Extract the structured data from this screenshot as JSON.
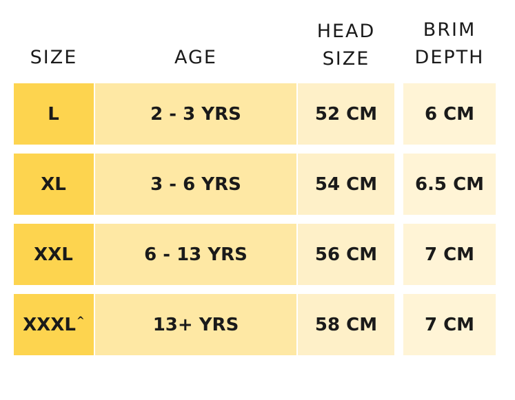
{
  "headers": {
    "size": "SIZE",
    "age": "AGE",
    "head_line1": "HEAD",
    "head_line2": "SIZE",
    "brim_line1": "BRIM",
    "brim_line2": "DEPTH"
  },
  "rows": [
    {
      "size": "L",
      "size_mark": "",
      "age": "2 - 3 YRS",
      "head": "52 CM",
      "brim": "6 CM"
    },
    {
      "size": "XL",
      "size_mark": "",
      "age": "3 - 6 YRS",
      "head": "54 CM",
      "brim": "6.5 CM"
    },
    {
      "size": "XXL",
      "size_mark": "",
      "age": "6 - 13 YRS",
      "head": "56 CM",
      "brim": "7 CM"
    },
    {
      "size": "XXXL",
      "size_mark": "^",
      "age": "13+ YRS",
      "head": "58 CM",
      "brim": "7 CM"
    }
  ],
  "colors": {
    "size_column": "#fdd44f",
    "age_column": "#fee8a4",
    "head_column": "#fef0c8",
    "brim_column": "#fff4d6"
  }
}
